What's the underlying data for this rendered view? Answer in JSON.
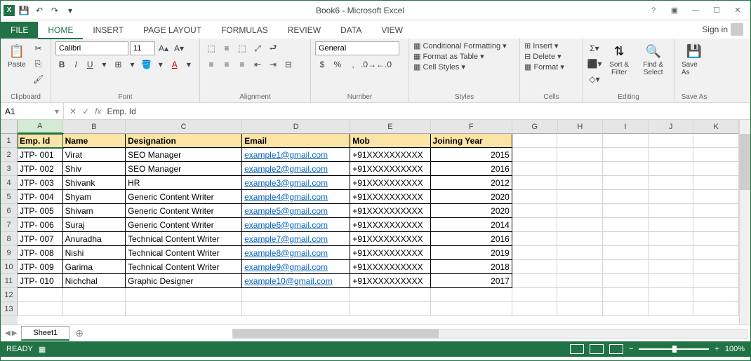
{
  "title": "Book6 - Microsoft Excel",
  "signin": "Sign in",
  "tabs": {
    "file": "FILE",
    "home": "HOME",
    "insert": "INSERT",
    "pagelayout": "PAGE LAYOUT",
    "formulas": "FORMULAS",
    "review": "REVIEW",
    "data": "DATA",
    "view": "VIEW"
  },
  "ribbon": {
    "clipboard": {
      "paste": "Paste",
      "label": "Clipboard"
    },
    "font": {
      "name": "Calibri",
      "size": "11",
      "label": "Font"
    },
    "alignment": {
      "label": "Alignment"
    },
    "number": {
      "format": "General",
      "label": "Number"
    },
    "styles": {
      "cf": "Conditional Formatting",
      "fat": "Format as Table",
      "cs": "Cell Styles",
      "label": "Styles"
    },
    "cells": {
      "insert": "Insert",
      "delete": "Delete",
      "format": "Format",
      "label": "Cells"
    },
    "editing": {
      "sort": "Sort & Filter",
      "find": "Find & Select",
      "label": "Editing"
    },
    "save": {
      "save": "Save As",
      "label": "Save As"
    }
  },
  "namebox": "A1",
  "formula": "Emp. Id",
  "columns": [
    {
      "letter": "A",
      "width": 65,
      "selected": true
    },
    {
      "letter": "B",
      "width": 90
    },
    {
      "letter": "C",
      "width": 167
    },
    {
      "letter": "D",
      "width": 155
    },
    {
      "letter": "E",
      "width": 115
    },
    {
      "letter": "F",
      "width": 117
    },
    {
      "letter": "G",
      "width": 65
    },
    {
      "letter": "H",
      "width": 65
    },
    {
      "letter": "I",
      "width": 65
    },
    {
      "letter": "J",
      "width": 65
    },
    {
      "letter": "K",
      "width": 65
    }
  ],
  "headers": [
    "Emp. Id",
    "Name",
    "Designation",
    "Email",
    "Mob",
    "Joining Year"
  ],
  "data": [
    [
      "JTP- 001",
      "Virat",
      "SEO Manager",
      "example1@gmail.com",
      "+91XXXXXXXXXX",
      "2015"
    ],
    [
      "JTP- 002",
      "Shiv",
      "SEO Manager",
      "example2@gmail.com",
      "+91XXXXXXXXXX",
      "2016"
    ],
    [
      "JTP- 003",
      "Shivank",
      "HR",
      "example3@gmail.com",
      "+91XXXXXXXXXX",
      "2012"
    ],
    [
      "JTP- 004",
      "Shyam",
      "Generic Content Writer",
      "example4@gmail.com",
      "+91XXXXXXXXXX",
      "2020"
    ],
    [
      "JTP- 005",
      "Shivam",
      "Generic Content Writer",
      "example5@gmail.com",
      "+91XXXXXXXXXX",
      "2020"
    ],
    [
      "JTP- 006",
      "Suraj",
      "Generic Content Writer",
      "example6@gmail.com",
      "+91XXXXXXXXXX",
      "2014"
    ],
    [
      "JTP- 007",
      "Anuradha",
      "Technical Content Writer",
      "example7@gmail.com",
      "+91XXXXXXXXXX",
      "2016"
    ],
    [
      "JTP- 008",
      "Nishi",
      "Technical Content Writer",
      "example8@gmail.com",
      "+91XXXXXXXXXX",
      "2019"
    ],
    [
      "JTP- 009",
      "Garima",
      "Technical Content Writer",
      "example9@gmail.com",
      "+91XXXXXXXXXX",
      "2018"
    ],
    [
      "JTP- 010",
      "Nichchal",
      "Graphic Designer",
      "example10@gmail.com",
      "+91XXXXXXXXXX",
      "2017"
    ]
  ],
  "sheet": "Sheet1",
  "status": "READY",
  "zoom": "100%"
}
